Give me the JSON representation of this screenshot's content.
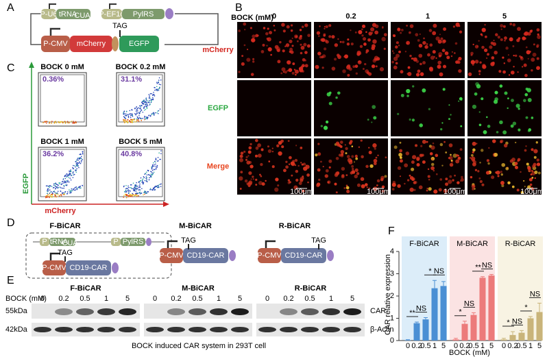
{
  "panel_labels": [
    "A",
    "B",
    "C",
    "D",
    "E",
    "F"
  ],
  "panel_a": {
    "u6": "P-U6",
    "trna": "tRNA",
    "trna_sub": "CUA",
    "ef1a": "P-EF1α",
    "pylrs": "PylRS",
    "cmv": "P-CMV",
    "mcherry": "mCherry",
    "tag": "TAG",
    "egfp": "EGFP"
  },
  "panel_b": {
    "header": "BOCK (mM)",
    "columns": [
      "0",
      "0.2",
      "1",
      "5"
    ],
    "rows": [
      "mCherry",
      "EGFP",
      "Merge"
    ],
    "scale_bar": "100μm"
  },
  "panel_c": {
    "plots": [
      {
        "title": "BOCK   0 mM",
        "percent": "0.36%"
      },
      {
        "title": "BOCK   0.2 mM",
        "percent": "31.1%"
      },
      {
        "title": "BOCK    1 mM",
        "percent": "36.2%"
      },
      {
        "title": "BOCK    5 mM",
        "percent": "40.8%"
      }
    ],
    "y_label": "EGFP",
    "x_label": "mCherry"
  },
  "panel_d": {
    "names": [
      "F-BiCAR",
      "M-BiCAR",
      "R-BiCAR"
    ],
    "cmv": "P-CMV",
    "car": "CD19-CAR",
    "tag": "TAG",
    "p": "P",
    "trna": "tRNA",
    "trna_sub": "CUA",
    "pylrs": "PylRS"
  },
  "panel_e": {
    "names": [
      "F-BiCAR",
      "M-BiCAR",
      "R-BiCAR"
    ],
    "bock_label": "BOCK (mM)",
    "lanes": [
      "0",
      "0.2",
      "0.5",
      "1",
      "5"
    ],
    "markers": [
      "55kDa",
      "42kDa"
    ],
    "bands": [
      "CAR",
      "β-Actin"
    ],
    "caption": "BOCK induced CAR system in 293T cell"
  },
  "chart_data": {
    "type": "bar",
    "y_label": "CAR relative expression",
    "x_label": "BOCK (mM)",
    "categories": [
      "0",
      "0.2",
      "0.5",
      "1",
      "5"
    ],
    "ylim": [
      0,
      4
    ],
    "yticks": [
      0,
      1,
      2,
      3,
      4
    ],
    "series": [
      {
        "name": "F-BiCAR",
        "color": "#4a8fd4",
        "bg": "#dcedf9",
        "values": [
          0.02,
          0.78,
          0.95,
          2.35,
          2.45
        ],
        "errors": [
          0.02,
          0.05,
          0.08,
          0.35,
          0.2
        ],
        "significance": [
          "**",
          "NS",
          "*",
          "NS"
        ]
      },
      {
        "name": "M-BiCAR",
        "color": "#ec7b7b",
        "bg": "#fbe3e3",
        "values": [
          0.05,
          0.75,
          1.15,
          2.82,
          2.92
        ],
        "errors": [
          0.05,
          0.12,
          0.1,
          0.05,
          0.05
        ],
        "significance": [
          "*",
          "NS",
          "**",
          "NS"
        ]
      },
      {
        "name": "R-BiCAR",
        "color": "#c9b47a",
        "bg": "#f8f3e3",
        "values": [
          0.05,
          0.25,
          0.35,
          1.0,
          1.28
        ],
        "errors": [
          0.05,
          0.15,
          0.1,
          0.08,
          0.4
        ],
        "significance": [
          "*",
          "NS",
          "*",
          "NS"
        ]
      }
    ]
  }
}
